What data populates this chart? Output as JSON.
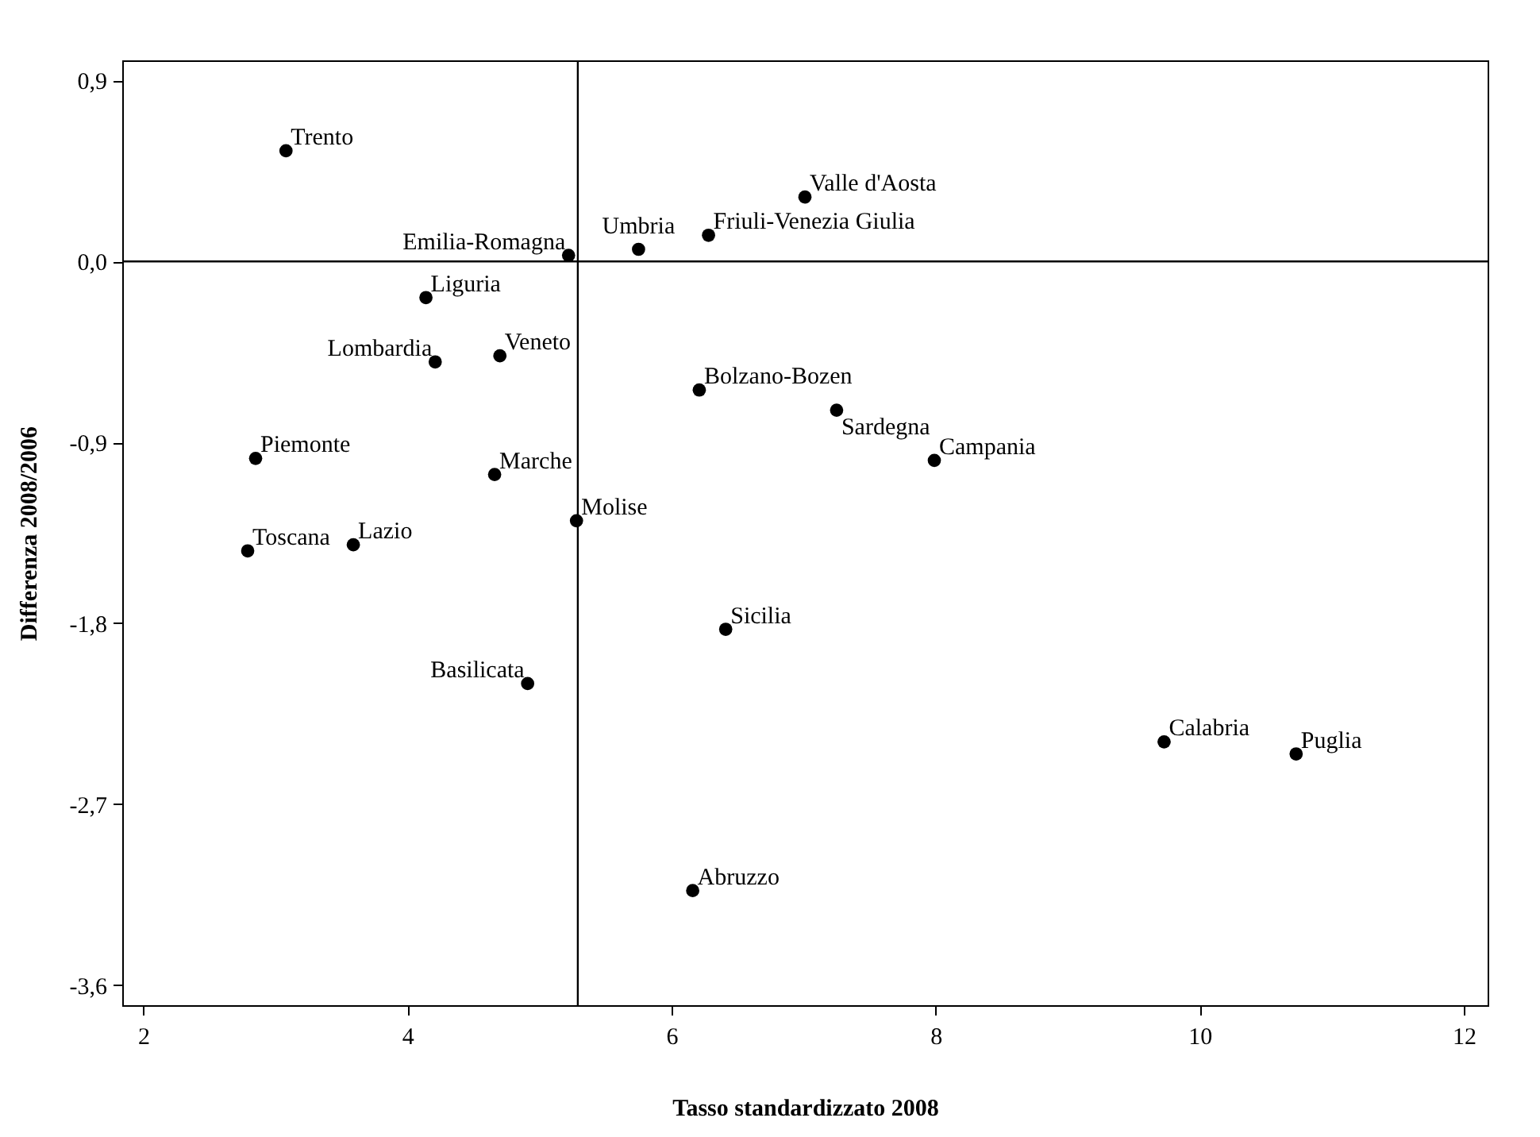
{
  "chart_data": {
    "type": "scatter",
    "xlabel": "Tasso standardizzato 2008",
    "ylabel": "Differenza 2008/2006",
    "x": [
      3.08,
      5.22,
      5.75,
      6.28,
      7.01,
      4.14,
      4.21,
      4.7,
      6.21,
      7.25,
      7.99,
      2.85,
      4.66,
      5.28,
      2.79,
      3.59,
      6.41,
      4.91,
      6.16,
      9.73,
      10.73
    ],
    "series": [
      {
        "color": "#000000",
        "values": [
          0.55,
          0.03,
          0.06,
          0.13,
          0.32,
          -0.18,
          -0.5,
          -0.47,
          -0.64,
          -0.74,
          -0.99,
          -0.98,
          -1.06,
          -1.29,
          -1.44,
          -1.41,
          -1.83,
          -2.1,
          -3.13,
          -2.39,
          -2.45
        ]
      }
    ],
    "annotations": [
      {
        "text": "Trento",
        "x": 3.08,
        "y": 0.55
      },
      {
        "text": "Emilia-Romagna",
        "x": 5.22,
        "y": 0.03
      },
      {
        "text": "Umbria",
        "x": 5.75,
        "y": 0.06
      },
      {
        "text": "Friuli-Venezia Giulia",
        "x": 6.28,
        "y": 0.13
      },
      {
        "text": "Valle d'Aosta",
        "x": 7.01,
        "y": 0.32
      },
      {
        "text": "Liguria",
        "x": 4.14,
        "y": -0.18
      },
      {
        "text": "Lombardia",
        "x": 4.21,
        "y": -0.5
      },
      {
        "text": "Veneto",
        "x": 4.7,
        "y": -0.47
      },
      {
        "text": "Bolzano-Bozen",
        "x": 6.21,
        "y": -0.64
      },
      {
        "text": "Sardegna",
        "x": 7.25,
        "y": -0.74
      },
      {
        "text": "Campania",
        "x": 7.99,
        "y": -0.99
      },
      {
        "text": "Piemonte",
        "x": 2.85,
        "y": -0.98
      },
      {
        "text": "Marche",
        "x": 4.66,
        "y": -1.06
      },
      {
        "text": "Molise",
        "x": 5.28,
        "y": -1.29
      },
      {
        "text": "Toscana",
        "x": 2.79,
        "y": -1.44
      },
      {
        "text": "Lazio",
        "x": 3.59,
        "y": -1.41
      },
      {
        "text": "Sicilia",
        "x": 6.41,
        "y": -1.83
      },
      {
        "text": "Basilicata",
        "x": 4.91,
        "y": -2.1
      },
      {
        "text": "Abruzzo",
        "x": 6.16,
        "y": -3.13
      },
      {
        "text": "Calabria",
        "x": 9.73,
        "y": -2.39
      },
      {
        "text": "Puglia",
        "x": 10.73,
        "y": -2.45
      }
    ],
    "xlim": [
      1.84,
      12.18
    ],
    "xticks": [
      2,
      4,
      6,
      8,
      10,
      12
    ],
    "ylim": [
      -3.7,
      1.0
    ],
    "yticks": [
      {
        "value": 0.9,
        "label": "0,9"
      },
      {
        "value": 0,
        "label": "0,0"
      },
      {
        "value": -0.9,
        "label": "-0,9"
      },
      {
        "value": -1.8,
        "label": "-1,8"
      },
      {
        "value": -2.7,
        "label": "-2,7"
      },
      {
        "value": -3.6,
        "label": "-3,6"
      }
    ],
    "ref_lines": [
      {
        "axis": "x",
        "value": 5.29,
        "color": "#000000"
      },
      {
        "axis": "y",
        "value": 0,
        "color": "#000000"
      }
    ],
    "grid": false,
    "marker": "circle"
  }
}
